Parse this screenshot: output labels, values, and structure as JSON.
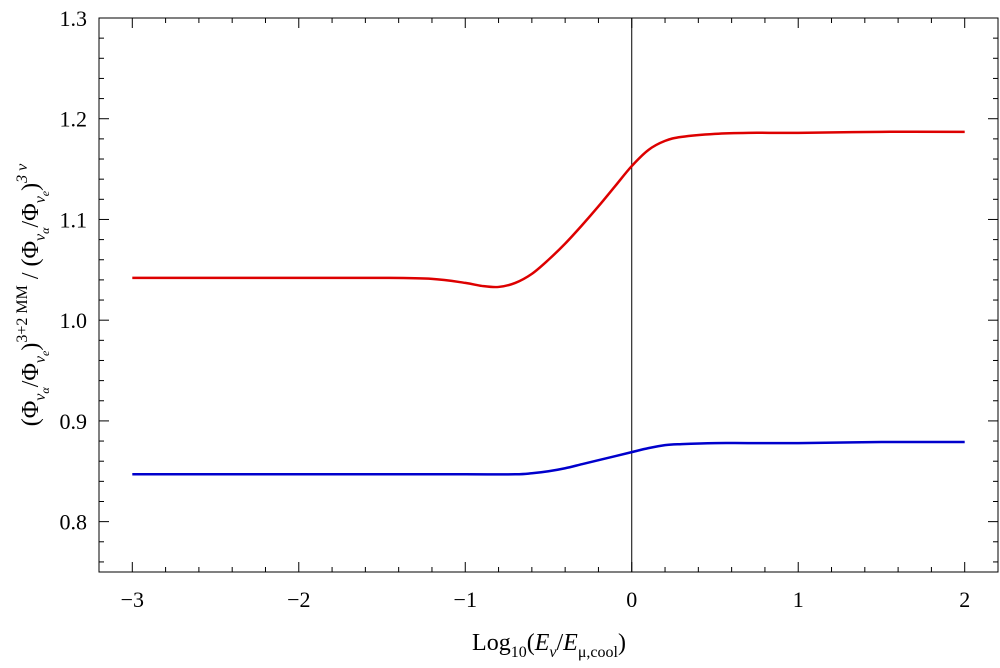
{
  "chart_data": {
    "type": "line",
    "xlabel": {
      "prefix": "Log",
      "sub10": "10",
      "open": "(",
      "e1": "E",
      "nu": "ν",
      "slash": "/",
      "e2": "E",
      "sub2": "μ,cool",
      "close": ")"
    },
    "ylabel": {
      "open": "(Φ",
      "nu": "ν",
      "alpha": "α",
      "slash": "/Φ",
      "nu2": "ν",
      "e": "e",
      "close1": ")",
      "sup1": "3+2 MM",
      "mid": " / (Φ",
      "nu3": "ν",
      "alpha2": "α",
      "slash2": "/Φ",
      "nu4": "ν",
      "e2": "e",
      "close2": ")",
      "sup2": "3 ν"
    },
    "xlim": [
      -3.2,
      2.2
    ],
    "ylim": [
      0.75,
      1.3
    ],
    "xticks": [
      -3,
      -2,
      -1,
      0,
      1,
      2
    ],
    "xtick_labels": [
      "−3",
      "−2",
      "−1",
      "0",
      "1",
      "2"
    ],
    "yticks": [
      0.8,
      0.9,
      1.0,
      1.1,
      1.2,
      1.3
    ],
    "ytick_labels": [
      "0.8",
      "0.9",
      "1.0",
      "1.1",
      "1.2",
      "1.3"
    ],
    "vertical_line_x": 0,
    "grid": false,
    "series": [
      {
        "color": "#dd0000",
        "x": [
          -3.0,
          -2.5,
          -2.0,
          -1.5,
          -1.2,
          -1.0,
          -0.9,
          -0.8,
          -0.7,
          -0.6,
          -0.5,
          -0.4,
          -0.3,
          -0.2,
          -0.1,
          0.0,
          0.1,
          0.2,
          0.3,
          0.5,
          0.7,
          1.0,
          1.5,
          2.0
        ],
        "y": [
          1.042,
          1.042,
          1.042,
          1.042,
          1.041,
          1.037,
          1.034,
          1.033,
          1.037,
          1.046,
          1.06,
          1.076,
          1.094,
          1.113,
          1.133,
          1.153,
          1.169,
          1.178,
          1.182,
          1.185,
          1.186,
          1.186,
          1.187,
          1.187
        ]
      },
      {
        "color": "#0000cc",
        "x": [
          -3.0,
          -2.5,
          -2.0,
          -1.5,
          -1.0,
          -0.7,
          -0.6,
          -0.5,
          -0.4,
          -0.3,
          -0.2,
          -0.1,
          0.0,
          0.1,
          0.2,
          0.3,
          0.5,
          0.7,
          1.0,
          1.5,
          2.0
        ],
        "y": [
          0.847,
          0.847,
          0.847,
          0.847,
          0.847,
          0.847,
          0.848,
          0.85,
          0.853,
          0.857,
          0.861,
          0.865,
          0.869,
          0.873,
          0.876,
          0.877,
          0.878,
          0.878,
          0.878,
          0.879,
          0.879
        ]
      }
    ]
  }
}
